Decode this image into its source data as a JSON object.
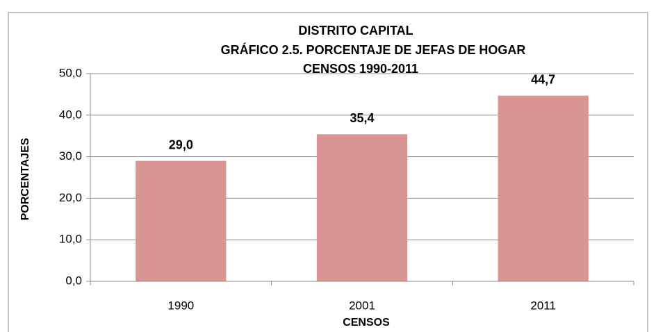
{
  "chart_data": {
    "type": "bar",
    "title": [
      "DISTRITO CAPITAL",
      "GRÁFICO 2.5. PORCENTAJE  DE JEFAS DE HOGAR",
      "CENSOS 1990-2011"
    ],
    "x_label": "CENSOS",
    "y_label": "PORCENTAJES",
    "categories": [
      "1990",
      "2001",
      "2011"
    ],
    "values": [
      29.0,
      35.4,
      44.7
    ],
    "value_labels": [
      "29,0",
      "35,4",
      "44,7"
    ],
    "color": "#d99594",
    "ylim": [
      0,
      50
    ],
    "yticks": [
      {
        "value": 0,
        "label": "0,0"
      },
      {
        "value": 10,
        "label": "10,0"
      },
      {
        "value": 20,
        "label": "20,0"
      },
      {
        "value": 30,
        "label": "30,0"
      },
      {
        "value": 40,
        "label": "40,0"
      },
      {
        "value": 50,
        "label": "50,0"
      }
    ],
    "grid": true
  }
}
